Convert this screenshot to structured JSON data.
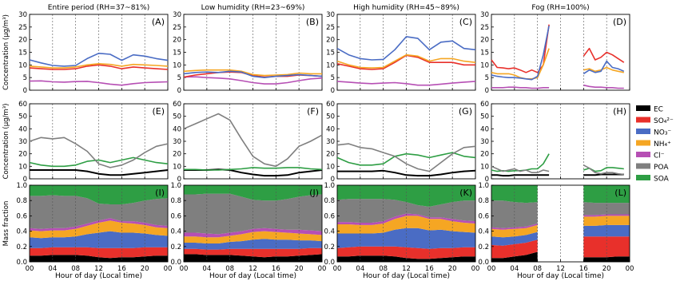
{
  "chart_data": {
    "type": "line",
    "xlabel": "Hour of day (Local time)",
    "xticks": [
      "00",
      "04",
      "08",
      "12",
      "16",
      "20",
      "00"
    ],
    "ylabel_top": "Concentration (μg/m³)",
    "ylabel_mid": "Concentration (μg/m³)",
    "ylabel_bottom": "Mass fraction",
    "ylim_top": [
      0,
      30
    ],
    "ylim_mid": [
      0,
      60
    ],
    "ylim_bottom": [
      0,
      1.0
    ],
    "yticks_top": [
      "0",
      "5",
      "10",
      "15",
      "20",
      "25",
      "30"
    ],
    "yticks_mid": [
      "0",
      "10",
      "20",
      "30",
      "40",
      "50",
      "60"
    ],
    "yticks_bottom": [
      "0.0",
      "0.2",
      "0.4",
      "0.6",
      "0.8",
      "1.0"
    ],
    "columns": [
      {
        "title": "Entire period (RH=37~81%)",
        "panel_labels": [
          "(A)",
          "(E)",
          "(I)"
        ]
      },
      {
        "title": "Low humidity (RH=23~69%)",
        "panel_labels": [
          "(B)",
          "(F)",
          "(J)"
        ]
      },
      {
        "title": "High humidity (RH=45~89%)",
        "panel_labels": [
          "(C)",
          "(G)",
          "(K)"
        ]
      },
      {
        "title": "Fog (RH=100%)",
        "panel_labels": [
          "(D)",
          "(H)",
          "(L)"
        ]
      }
    ],
    "legend": [
      {
        "key": "EC",
        "label": "EC",
        "color": "#000000"
      },
      {
        "key": "SO4",
        "label": "SO₄²⁻",
        "color": "#e8302b"
      },
      {
        "key": "NO3",
        "label": "NO₃⁻",
        "color": "#4a6cc4"
      },
      {
        "key": "NH4",
        "label": "NH₄⁺",
        "color": "#f5a623"
      },
      {
        "key": "Cl",
        "label": "Cl⁻",
        "color": "#b64fb4"
      },
      {
        "key": "POA",
        "label": "POA",
        "color": "#7f7f7f"
      },
      {
        "key": "SOA",
        "label": "SOA",
        "color": "#2e9e44"
      }
    ],
    "hours": [
      0,
      2,
      4,
      6,
      8,
      10,
      12,
      14,
      16,
      18,
      20,
      22,
      24
    ],
    "fog_hours_1": [
      0,
      1,
      2,
      3,
      4,
      5,
      6,
      7,
      8,
      9,
      10
    ],
    "fog_hours_2": [
      16,
      17,
      18,
      19,
      20,
      21,
      22,
      23
    ],
    "inorganic": [
      {
        "NO3": [
          12.0,
          10.8,
          9.8,
          9.5,
          9.8,
          12.5,
          14.6,
          14.2,
          11.8,
          14.0,
          13.5,
          12.5,
          11.8
        ],
        "NH4": [
          9.5,
          9.2,
          8.8,
          8.8,
          9.2,
          10.0,
          10.5,
          10.2,
          9.5,
          10.2,
          10.0,
          9.8,
          9.5
        ],
        "SO4": [
          8.8,
          8.5,
          8.2,
          8.2,
          8.5,
          9.5,
          10.0,
          9.5,
          8.5,
          9.2,
          8.8,
          8.5,
          8.2
        ],
        "Cl": [
          3.6,
          3.7,
          3.3,
          3.2,
          3.4,
          3.5,
          3.0,
          2.4,
          2.0,
          2.6,
          3.0,
          3.2,
          3.3
        ]
      },
      {
        "NO3": [
          6.5,
          7.0,
          7.2,
          7.0,
          7.5,
          7.2,
          5.5,
          5.0,
          5.5,
          5.8,
          6.2,
          5.8,
          5.5
        ],
        "NH4": [
          7.5,
          7.8,
          8.0,
          8.0,
          8.0,
          7.5,
          6.2,
          5.8,
          6.0,
          6.2,
          6.8,
          6.5,
          6.5
        ],
        "SO4": [
          5.2,
          6.0,
          6.5,
          7.0,
          7.2,
          7.0,
          5.8,
          5.2,
          5.5,
          5.5,
          6.0,
          5.8,
          5.5
        ],
        "Cl": [
          5.2,
          5.3,
          5.0,
          4.8,
          4.5,
          3.8,
          3.0,
          2.5,
          2.5,
          3.0,
          3.8,
          4.5,
          4.8
        ]
      },
      {
        "NO3": [
          16.5,
          14.0,
          12.5,
          12.0,
          12.2,
          16.0,
          21.2,
          20.5,
          16.0,
          19.0,
          19.5,
          16.5,
          16.0
        ],
        "NH4": [
          11.5,
          10.0,
          9.0,
          8.8,
          9.0,
          11.5,
          14.0,
          13.5,
          11.5,
          12.5,
          12.5,
          11.5,
          11.0
        ],
        "SO4": [
          10.5,
          9.5,
          8.5,
          8.2,
          8.5,
          11.0,
          13.8,
          13.0,
          11.0,
          11.0,
          11.0,
          10.0,
          10.0
        ],
        "Cl": [
          3.5,
          3.2,
          2.8,
          2.6,
          2.8,
          3.0,
          2.6,
          2.0,
          2.0,
          2.4,
          2.8,
          3.2,
          3.5
        ]
      }
    ],
    "organic": [
      {
        "POA": [
          30.0,
          33.0,
          32.0,
          33.0,
          28.0,
          22.0,
          12.0,
          9.0,
          11.0,
          15.0,
          21.0,
          26.0,
          28.0
        ],
        "SOA": [
          13.0,
          11.0,
          10.0,
          10.0,
          11.0,
          14.0,
          15.0,
          13.0,
          15.0,
          17.0,
          15.0,
          13.0,
          12.0
        ],
        "EC": [
          7.0,
          7.0,
          7.0,
          7.0,
          7.0,
          6.0,
          4.0,
          3.0,
          3.0,
          4.0,
          5.0,
          6.0,
          7.0
        ]
      },
      {
        "POA": [
          40.0,
          44.0,
          48.0,
          52.0,
          47.0,
          32.0,
          18.0,
          12.0,
          10.0,
          16.0,
          26.0,
          30.0,
          35.0
        ],
        "SOA": [
          7.5,
          7.5,
          7.0,
          7.0,
          7.5,
          8.0,
          9.0,
          8.5,
          8.5,
          9.0,
          9.0,
          8.0,
          7.5
        ],
        "EC": [
          7.0,
          7.0,
          7.0,
          7.5,
          7.0,
          5.0,
          3.5,
          2.5,
          2.5,
          3.0,
          5.0,
          6.0,
          7.0
        ]
      },
      {
        "POA": [
          27.0,
          28.0,
          25.0,
          24.0,
          21.0,
          18.0,
          12.0,
          8.0,
          6.0,
          13.0,
          20.0,
          25.0,
          26.0
        ],
        "SOA": [
          17.0,
          13.0,
          11.0,
          11.0,
          12.0,
          18.0,
          20.0,
          19.0,
          17.0,
          19.0,
          21.0,
          18.0,
          17.0
        ],
        "EC": [
          6.0,
          6.0,
          6.0,
          6.0,
          6.5,
          5.0,
          3.0,
          2.5,
          2.5,
          3.5,
          5.0,
          6.0,
          6.5
        ]
      }
    ],
    "fog_inorganic": {
      "seg1": {
        "NO3": [
          6.0,
          5.5,
          5.2,
          5.0,
          5.0,
          4.8,
          4.5,
          4.2,
          5.5,
          14.0,
          25.5
        ],
        "SO4": [
          12.0,
          9.0,
          8.8,
          8.5,
          8.8,
          8.0,
          7.0,
          8.0,
          7.0,
          10.0,
          26.0
        ],
        "NH4": [
          7.0,
          6.5,
          6.5,
          6.5,
          6.0,
          5.0,
          4.5,
          4.5,
          5.0,
          10.0,
          16.5
        ],
        "Cl": [
          1.0,
          1.0,
          1.0,
          1.2,
          1.2,
          1.0,
          1.0,
          0.8,
          0.8,
          1.0,
          1.0
        ]
      },
      "seg2": {
        "NO3": [
          6.5,
          8.0,
          7.0,
          7.5,
          11.5,
          9.0,
          8.5,
          7.5
        ],
        "SO4": [
          13.5,
          16.5,
          12.0,
          13.0,
          15.0,
          14.0,
          12.5,
          11.0
        ],
        "NH4": [
          8.0,
          8.5,
          7.5,
          8.0,
          9.0,
          8.0,
          7.5,
          7.0
        ],
        "Cl": [
          2.0,
          1.5,
          1.2,
          1.2,
          1.0,
          1.0,
          0.8,
          0.8
        ]
      }
    },
    "fog_organic": {
      "seg1": {
        "POA": [
          10.0,
          8.0,
          6.0,
          7.0,
          8.0,
          6.0,
          7.0,
          5.0,
          5.0,
          7.0,
          6.0
        ],
        "SOA": [
          7.0,
          6.0,
          6.5,
          6.0,
          6.5,
          6.5,
          7.0,
          8.0,
          8.0,
          12.0,
          20.0
        ],
        "EC": [
          3.0,
          3.0,
          2.5,
          2.5,
          3.0,
          3.0,
          3.0,
          3.0,
          3.0,
          3.0,
          3.0
        ]
      },
      "seg2": {
        "POA": [
          11.0,
          8.5,
          5.0,
          4.0,
          5.0,
          5.0,
          4.0,
          3.5
        ],
        "SOA": [
          7.0,
          8.5,
          6.0,
          6.5,
          9.0,
          9.0,
          8.5,
          8.0
        ],
        "EC": [
          3.0,
          3.0,
          3.0,
          3.5,
          3.5,
          3.5,
          3.5,
          3.5
        ]
      }
    },
    "fractions": [
      {
        "EC": [
          0.08,
          0.08,
          0.09,
          0.09,
          0.09,
          0.08,
          0.06,
          0.05,
          0.06,
          0.06,
          0.07,
          0.08,
          0.08
        ],
        "SO4": [
          0.1,
          0.1,
          0.1,
          0.1,
          0.1,
          0.11,
          0.12,
          0.13,
          0.12,
          0.12,
          0.12,
          0.11,
          0.11
        ],
        "NO3": [
          0.14,
          0.13,
          0.13,
          0.13,
          0.14,
          0.17,
          0.2,
          0.22,
          0.2,
          0.2,
          0.18,
          0.16,
          0.15
        ],
        "NH4": [
          0.09,
          0.09,
          0.09,
          0.09,
          0.1,
          0.11,
          0.13,
          0.14,
          0.13,
          0.12,
          0.11,
          0.1,
          0.1
        ],
        "Cl": [
          0.03,
          0.03,
          0.03,
          0.03,
          0.03,
          0.03,
          0.03,
          0.03,
          0.02,
          0.03,
          0.03,
          0.03,
          0.03
        ],
        "POA": [
          0.42,
          0.43,
          0.43,
          0.42,
          0.4,
          0.33,
          0.22,
          0.18,
          0.22,
          0.24,
          0.29,
          0.34,
          0.36
        ],
        "SOA": [
          0.14,
          0.14,
          0.13,
          0.14,
          0.14,
          0.17,
          0.24,
          0.25,
          0.25,
          0.23,
          0.2,
          0.18,
          0.17
        ]
      },
      {
        "EC": [
          0.1,
          0.1,
          0.09,
          0.09,
          0.09,
          0.08,
          0.07,
          0.06,
          0.07,
          0.07,
          0.08,
          0.09,
          0.1
        ],
        "SO4": [
          0.07,
          0.07,
          0.07,
          0.07,
          0.08,
          0.09,
          0.1,
          0.11,
          0.1,
          0.1,
          0.09,
          0.09,
          0.08
        ],
        "NO3": [
          0.08,
          0.08,
          0.08,
          0.08,
          0.09,
          0.1,
          0.12,
          0.13,
          0.12,
          0.12,
          0.11,
          0.1,
          0.09
        ],
        "NH4": [
          0.08,
          0.08,
          0.08,
          0.08,
          0.08,
          0.09,
          0.1,
          0.1,
          0.1,
          0.09,
          0.09,
          0.08,
          0.08
        ],
        "Cl": [
          0.05,
          0.05,
          0.05,
          0.04,
          0.04,
          0.04,
          0.04,
          0.04,
          0.04,
          0.04,
          0.05,
          0.05,
          0.05
        ],
        "POA": [
          0.5,
          0.5,
          0.52,
          0.53,
          0.51,
          0.45,
          0.38,
          0.36,
          0.37,
          0.4,
          0.43,
          0.46,
          0.48
        ],
        "SOA": [
          0.12,
          0.12,
          0.11,
          0.11,
          0.11,
          0.15,
          0.19,
          0.2,
          0.2,
          0.18,
          0.15,
          0.13,
          0.12
        ]
      },
      {
        "EC": [
          0.07,
          0.07,
          0.08,
          0.08,
          0.08,
          0.07,
          0.05,
          0.04,
          0.04,
          0.05,
          0.06,
          0.07,
          0.07
        ],
        "SO4": [
          0.11,
          0.12,
          0.12,
          0.12,
          0.12,
          0.13,
          0.14,
          0.14,
          0.13,
          0.13,
          0.12,
          0.12,
          0.12
        ],
        "NO3": [
          0.19,
          0.18,
          0.17,
          0.17,
          0.18,
          0.22,
          0.25,
          0.26,
          0.24,
          0.24,
          0.22,
          0.2,
          0.19
        ],
        "NH4": [
          0.12,
          0.12,
          0.11,
          0.11,
          0.12,
          0.14,
          0.16,
          0.16,
          0.15,
          0.14,
          0.13,
          0.12,
          0.12
        ],
        "Cl": [
          0.03,
          0.03,
          0.03,
          0.03,
          0.03,
          0.03,
          0.03,
          0.02,
          0.02,
          0.02,
          0.03,
          0.03,
          0.03
        ],
        "POA": [
          0.29,
          0.3,
          0.31,
          0.31,
          0.29,
          0.22,
          0.15,
          0.12,
          0.14,
          0.17,
          0.22,
          0.26,
          0.27
        ],
        "SOA": [
          0.19,
          0.18,
          0.18,
          0.18,
          0.18,
          0.19,
          0.22,
          0.26,
          0.28,
          0.25,
          0.22,
          0.2,
          0.2
        ]
      }
    ],
    "fog_fractions": {
      "seg1_hours": [
        0,
        2,
        4,
        6,
        8
      ],
      "seg1": {
        "EC": [
          0.05,
          0.05,
          0.07,
          0.09,
          0.13
        ],
        "SO4": [
          0.17,
          0.16,
          0.16,
          0.16,
          0.16
        ],
        "NO3": [
          0.11,
          0.11,
          0.1,
          0.1,
          0.1
        ],
        "NH4": [
          0.1,
          0.1,
          0.1,
          0.09,
          0.09
        ],
        "Cl": [
          0.02,
          0.02,
          0.02,
          0.02,
          0.02
        ],
        "POA": [
          0.35,
          0.36,
          0.33,
          0.31,
          0.28
        ],
        "SOA": [
          0.2,
          0.2,
          0.22,
          0.23,
          0.22
        ]
      },
      "seg2_hours": [
        16,
        18,
        20,
        22,
        24
      ],
      "seg2": {
        "EC": [
          0.06,
          0.06,
          0.06,
          0.07,
          0.07
        ],
        "SO4": [
          0.27,
          0.27,
          0.27,
          0.26,
          0.26
        ],
        "NO3": [
          0.14,
          0.14,
          0.15,
          0.15,
          0.15
        ],
        "NH4": [
          0.12,
          0.12,
          0.12,
          0.12,
          0.12
        ],
        "Cl": [
          0.02,
          0.02,
          0.02,
          0.02,
          0.02
        ],
        "POA": [
          0.17,
          0.16,
          0.15,
          0.15,
          0.15
        ],
        "SOA": [
          0.22,
          0.23,
          0.23,
          0.23,
          0.23
        ]
      }
    }
  }
}
